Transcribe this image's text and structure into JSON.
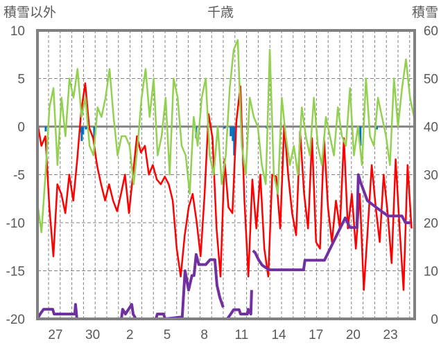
{
  "chart_data": {
    "type": "line",
    "title": "千歳",
    "ylabel_left": "積雪以外",
    "ylabel_right": "積雪",
    "ylim_left": [
      -20,
      10
    ],
    "ylim_right": [
      0,
      60
    ],
    "yticks_left": [
      10,
      5,
      0,
      -5,
      -10,
      -15,
      -20
    ],
    "yticks_right": [
      60,
      50,
      40,
      30,
      20,
      10,
      0
    ],
    "xlim": [
      -1.45,
      28.95
    ],
    "x_unit": "days after the 27th",
    "xticks": [
      {
        "x": 0,
        "label": "27"
      },
      {
        "x": 3,
        "label": "30"
      },
      {
        "x": 6,
        "label": "2"
      },
      {
        "x": 9,
        "label": "5"
      },
      {
        "x": 12,
        "label": "8"
      },
      {
        "x": 15,
        "label": "11"
      },
      {
        "x": 18,
        "label": "14"
      },
      {
        "x": 21,
        "label": "17"
      },
      {
        "x": 24,
        "label": "20"
      },
      {
        "x": 27,
        "label": "23"
      }
    ],
    "grid": true,
    "series": [
      {
        "name": "red-series",
        "axis": "left",
        "color": "#ff0000",
        "x_start": -1.45,
        "x_end": 28.7,
        "values": [
          0.4,
          -2,
          -1,
          -8.4,
          -13.5,
          -6,
          -7,
          -9,
          -5,
          -7.7,
          -3.4,
          1.6,
          4.5,
          -0.1,
          -1.2,
          -4.1,
          -6,
          -7.7,
          -6,
          -7.7,
          -8.8,
          -7,
          -5,
          -9,
          -5,
          -1,
          -2.7,
          -2,
          -5,
          -4,
          -5.5,
          -6,
          -5.2,
          -6,
          -7.7,
          -12.7,
          -15.6,
          -11.3,
          -8.4,
          -7,
          -9.9,
          -13.5,
          -7,
          1.3,
          -1.2,
          -10.6,
          -15.6,
          -3.4,
          -8.4,
          -9,
          0.6,
          4.2,
          -7.7,
          -15.6,
          -5.5,
          -10.6,
          -5,
          -12.7,
          -15.6,
          -5,
          -5.2,
          -10.6,
          0.2,
          -5,
          -9,
          -11.3,
          -0.5,
          -7,
          -10.6,
          -1.2,
          -12,
          -12.7,
          -1.2,
          -8.4,
          -12,
          -7.7,
          -10.6,
          -1.2,
          -10.6,
          -7,
          -12.7,
          -7,
          -17,
          -10.6,
          -4,
          -8.4,
          -12,
          -5,
          -9,
          -14.2,
          -3.4,
          -10.6,
          -17,
          -4,
          -10.6
        ]
      },
      {
        "name": "green-series",
        "axis": "left",
        "color": "#92d050",
        "x_start": -1.45,
        "x_end": 28.9,
        "values": [
          -8,
          -11,
          -5,
          2,
          4,
          -4,
          3,
          -1,
          5,
          3,
          6,
          1,
          3,
          -2,
          -3,
          2,
          1,
          3,
          6,
          1,
          -3,
          -1,
          -1,
          -2,
          -6,
          -2,
          3,
          6,
          1,
          5,
          -3,
          -1,
          3,
          -5,
          5,
          3,
          -2,
          -3,
          -7,
          1,
          -2,
          3,
          5,
          -3,
          -5,
          0,
          -6,
          -3,
          4,
          8,
          9,
          -2,
          -5,
          3,
          1,
          0,
          -4,
          -6,
          8,
          -5,
          -7,
          3,
          -1,
          -4,
          -2,
          -5,
          2,
          -1,
          -3,
          3,
          -2,
          -4,
          1,
          -1,
          -3,
          2,
          -1,
          -2,
          4,
          -3,
          0,
          -4,
          5,
          -1,
          -2,
          3,
          1,
          -1,
          -4,
          5,
          0,
          4,
          7,
          3,
          1
        ]
      },
      {
        "name": "blue-bars",
        "axis": "left",
        "color": "#0070c0",
        "type": "bar",
        "points": [
          [
            -0.78,
            -0.5
          ],
          [
            2.0,
            -0.6
          ],
          [
            2.12,
            -1.5
          ],
          [
            2.23,
            -0.8
          ],
          [
            2.46,
            -0.3
          ],
          [
            3.13,
            -1.5
          ],
          [
            11.34,
            -1.2
          ],
          [
            12.29,
            -0.3
          ],
          [
            13.63,
            -0.2
          ],
          [
            14.13,
            -1.0
          ],
          [
            14.3,
            -1.5
          ],
          [
            14.41,
            -3.0
          ],
          [
            17.04,
            -0.2
          ],
          [
            24.58,
            -2.0
          ],
          [
            25.9,
            -0.3
          ]
        ]
      },
      {
        "name": "snow-depth",
        "axis": "right",
        "color": "#7030a0",
        "points": [
          [
            -1.45,
            0
          ],
          [
            -1.23,
            1
          ],
          [
            -0.95,
            2
          ],
          [
            -0.22,
            2
          ],
          [
            -0.11,
            1
          ],
          [
            1.56,
            1
          ],
          [
            1.62,
            3
          ],
          [
            1.73,
            0
          ],
          [
            5.31,
            0
          ],
          [
            5.42,
            2
          ],
          [
            5.64,
            1
          ],
          [
            6.15,
            3
          ],
          [
            6.26,
            1
          ],
          [
            6.48,
            0
          ],
          [
            8.1,
            0
          ],
          [
            8.21,
            1
          ],
          [
            8.72,
            1
          ],
          [
            8.83,
            0
          ],
          [
            10.22,
            0.4
          ],
          [
            10.45,
            10
          ],
          [
            10.73,
            6
          ],
          [
            11.0,
            9
          ],
          [
            11.17,
            9
          ],
          [
            11.34,
            13.4
          ],
          [
            11.56,
            11.3
          ],
          [
            12.12,
            11.3
          ],
          [
            12.46,
            12.3
          ],
          [
            12.85,
            12.3
          ],
          [
            13.02,
            7
          ],
          [
            13.24,
            4.5
          ],
          [
            13.52,
            2.4
          ],
          null,
          [
            13.85,
            0
          ],
          [
            14.13,
            1
          ],
          [
            14.36,
            1.9
          ],
          [
            14.8,
            1.9
          ],
          [
            14.92,
            1
          ],
          [
            15.47,
            1
          ],
          [
            15.53,
            2
          ],
          [
            15.75,
            1
          ],
          [
            15.81,
            6
          ],
          null,
          [
            15.92,
            14.2
          ],
          [
            16.09,
            13.8
          ],
          [
            16.37,
            12.3
          ],
          [
            16.65,
            11.2
          ],
          [
            17.21,
            10.2
          ],
          [
            20.0,
            10.2
          ],
          [
            20.11,
            12.2
          ],
          [
            21.68,
            12.2
          ],
          [
            23.35,
            21
          ],
          [
            23.74,
            19
          ],
          [
            24.3,
            19
          ],
          [
            24.41,
            30
          ],
          [
            24.58,
            28.5
          ],
          [
            25.14,
            24.6
          ],
          [
            25.7,
            23.5
          ],
          [
            26.26,
            22.4
          ],
          [
            26.82,
            21.4
          ],
          [
            27.93,
            21.4
          ],
          [
            28.21,
            20
          ],
          [
            28.6,
            20
          ]
        ]
      }
    ]
  }
}
